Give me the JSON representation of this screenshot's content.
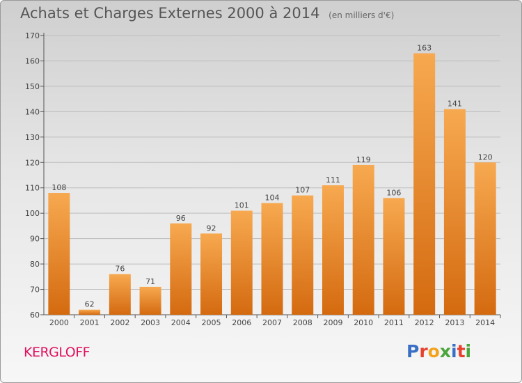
{
  "title": "Achats et Charges Externes 2000 à 2014",
  "subtitle": "(en milliers d'€)",
  "commune": "KERGLOFF",
  "brand": {
    "letters": [
      "P",
      "r",
      "o",
      "x",
      "i",
      "t",
      "i"
    ],
    "colors": [
      "#3a6fc6",
      "#e7402e",
      "#f2a21d",
      "#4aa63c",
      "#3a6fc6",
      "#e7402e",
      "#4aa63c"
    ]
  },
  "colors": {
    "bar_top": "#f7a950",
    "bar_bottom": "#d46a10",
    "commune": "#e0115f"
  },
  "chart_data": {
    "type": "bar",
    "title": "Achats et Charges Externes 2000 à 2014",
    "subtitle": "(en milliers d'€)",
    "xlabel": "",
    "ylabel": "",
    "categories": [
      "2000",
      "2001",
      "2002",
      "2003",
      "2004",
      "2005",
      "2006",
      "2007",
      "2008",
      "2009",
      "2010",
      "2011",
      "2012",
      "2013",
      "2014"
    ],
    "values": [
      108,
      62,
      76,
      71,
      96,
      92,
      101,
      104,
      107,
      111,
      119,
      106,
      163,
      141,
      120
    ],
    "ylim": [
      60,
      170
    ],
    "yticks": [
      60,
      70,
      80,
      90,
      100,
      110,
      120,
      130,
      140,
      150,
      160,
      170
    ],
    "grid": true,
    "data_labels": true
  }
}
